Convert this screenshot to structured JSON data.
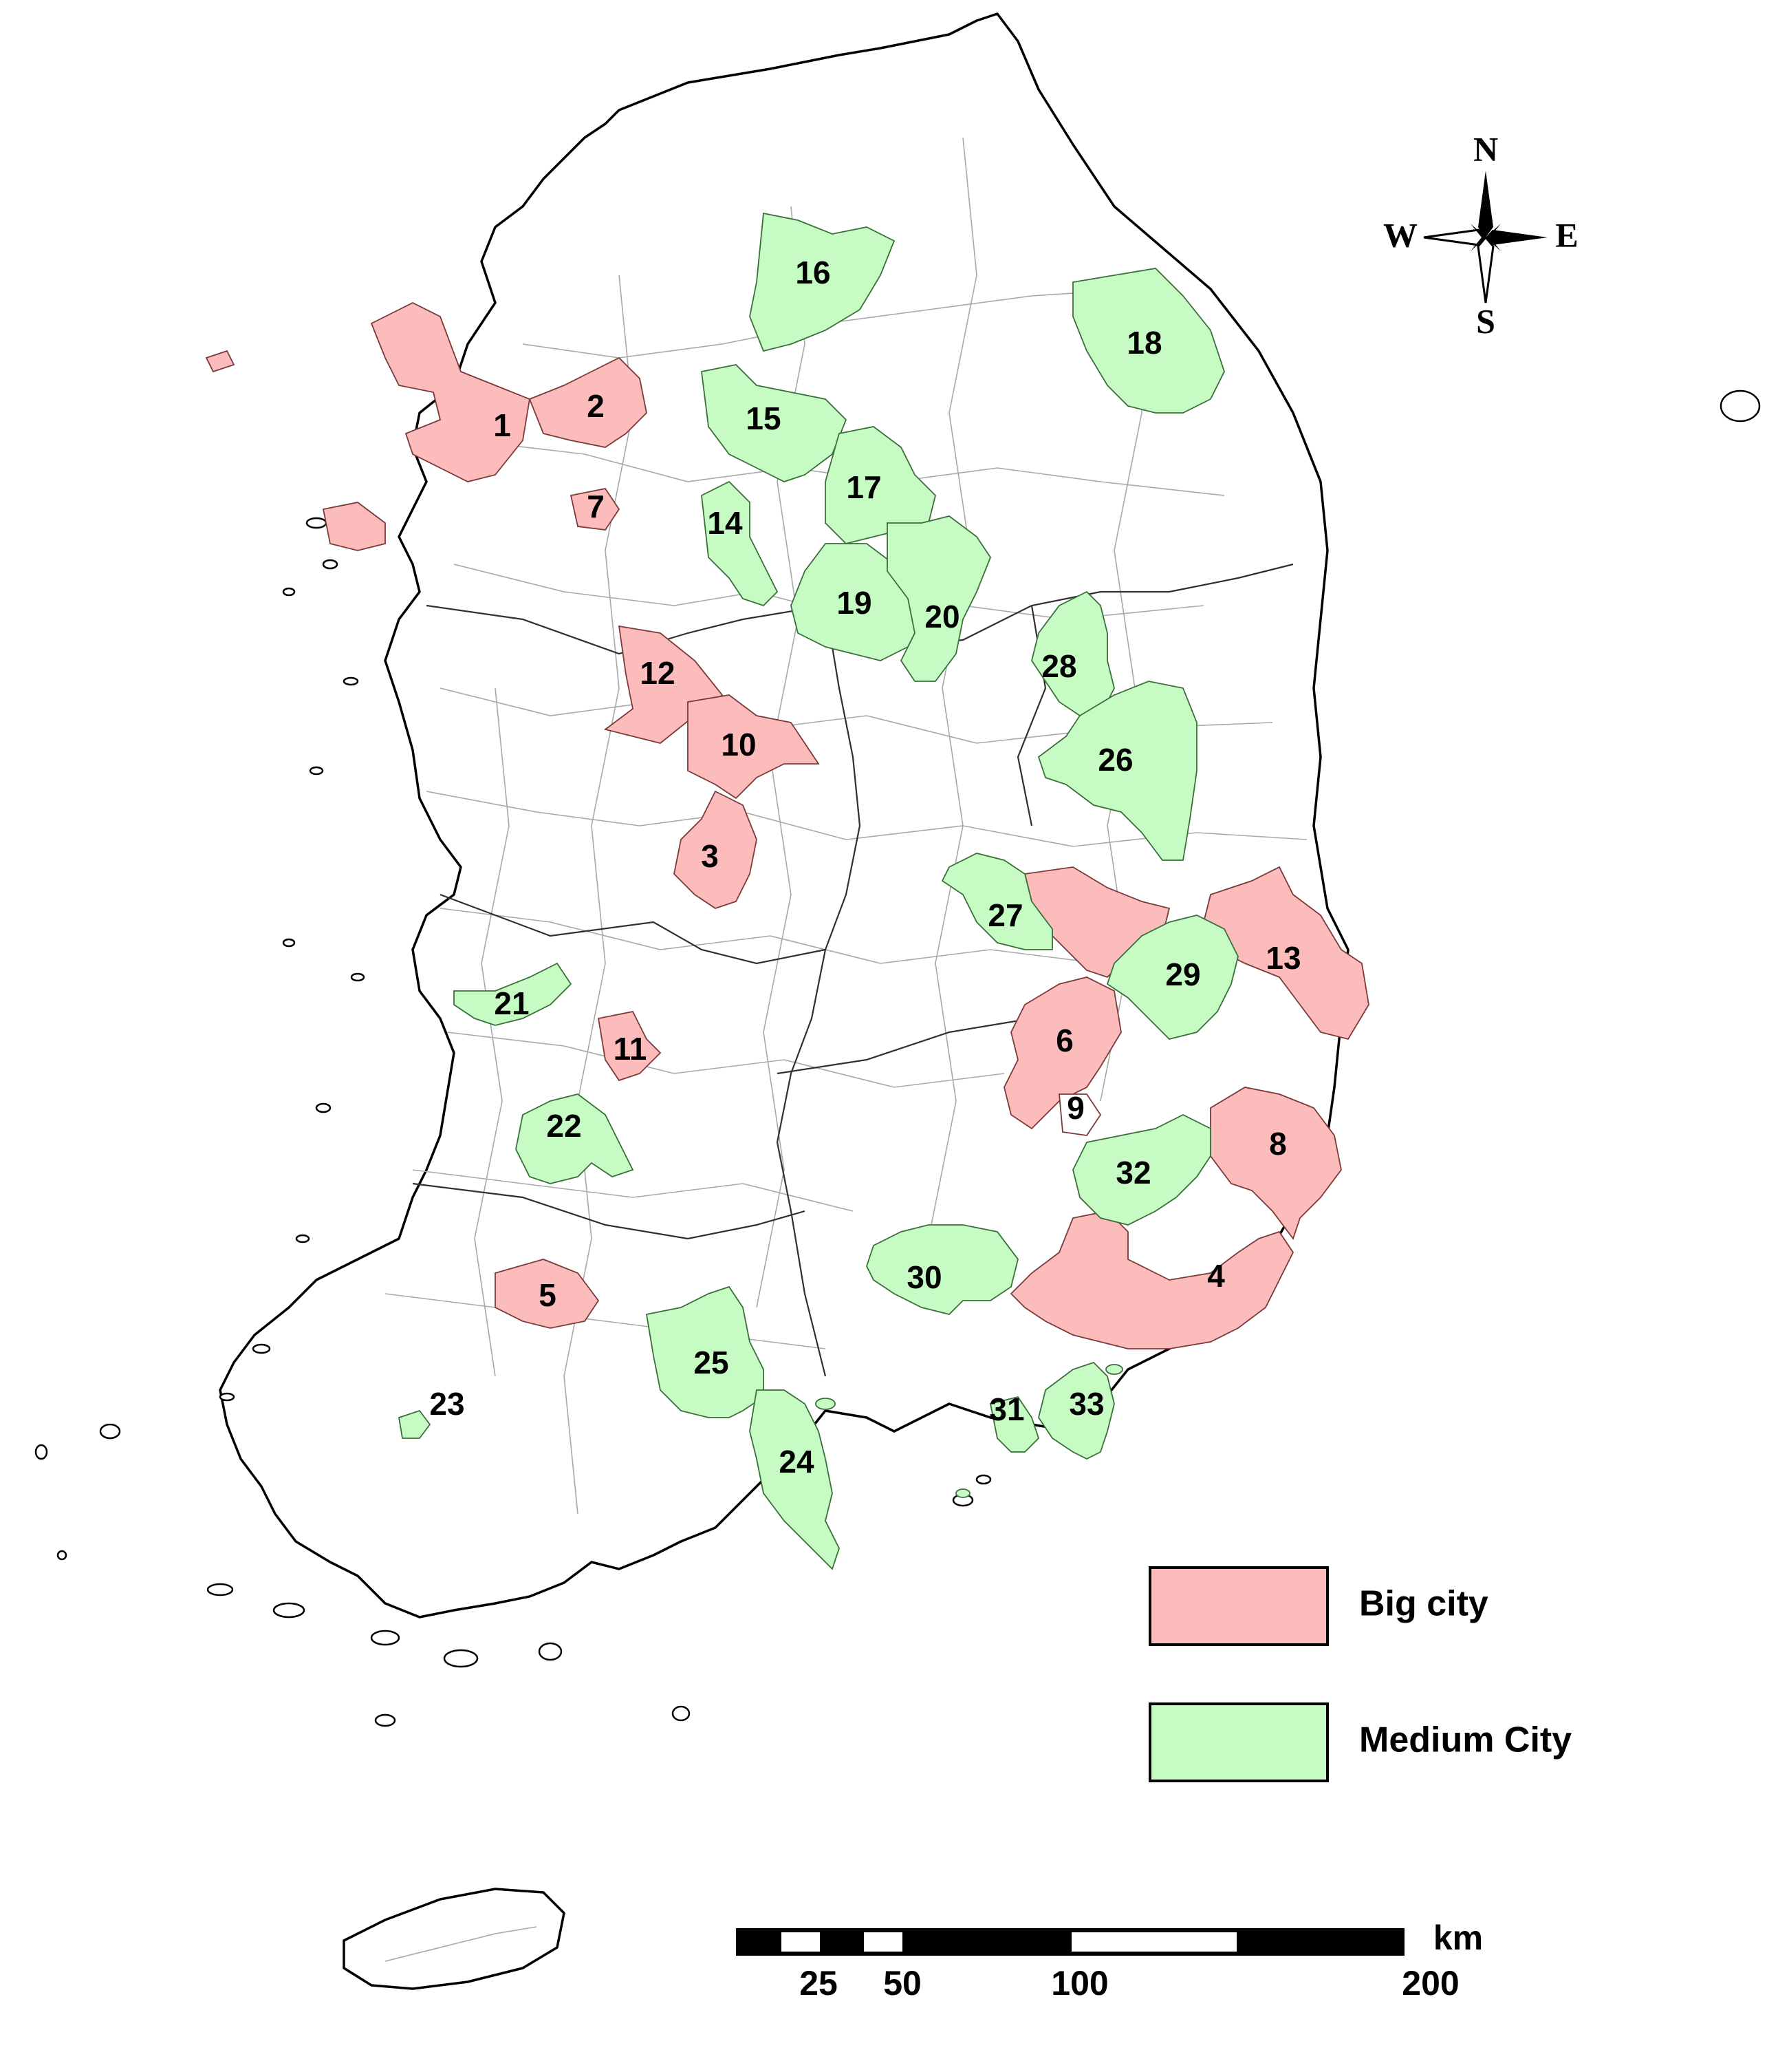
{
  "map": {
    "cities": [
      {
        "id": "1",
        "category": "big"
      },
      {
        "id": "2",
        "category": "big"
      },
      {
        "id": "3",
        "category": "big"
      },
      {
        "id": "4",
        "category": "big"
      },
      {
        "id": "5",
        "category": "big"
      },
      {
        "id": "6",
        "category": "big"
      },
      {
        "id": "7",
        "category": "big"
      },
      {
        "id": "8",
        "category": "big"
      },
      {
        "id": "9",
        "category": "big"
      },
      {
        "id": "10",
        "category": "big"
      },
      {
        "id": "11",
        "category": "big"
      },
      {
        "id": "12",
        "category": "big"
      },
      {
        "id": "13",
        "category": "big"
      },
      {
        "id": "14",
        "category": "medium"
      },
      {
        "id": "15",
        "category": "medium"
      },
      {
        "id": "16",
        "category": "medium"
      },
      {
        "id": "17",
        "category": "medium"
      },
      {
        "id": "18",
        "category": "medium"
      },
      {
        "id": "19",
        "category": "medium"
      },
      {
        "id": "20",
        "category": "medium"
      },
      {
        "id": "21",
        "category": "medium"
      },
      {
        "id": "22",
        "category": "medium"
      },
      {
        "id": "23",
        "category": "medium"
      },
      {
        "id": "24",
        "category": "medium"
      },
      {
        "id": "25",
        "category": "medium"
      },
      {
        "id": "26",
        "category": "medium"
      },
      {
        "id": "27",
        "category": "medium"
      },
      {
        "id": "28",
        "category": "medium"
      },
      {
        "id": "29",
        "category": "medium"
      },
      {
        "id": "30",
        "category": "medium"
      },
      {
        "id": "31",
        "category": "medium"
      },
      {
        "id": "32",
        "category": "medium"
      },
      {
        "id": "33",
        "category": "medium"
      }
    ]
  },
  "compass": {
    "n": "N",
    "s": "S",
    "e": "E",
    "w": "W"
  },
  "legend": {
    "items": [
      {
        "label": "Big city",
        "color": "#fcbcbc"
      },
      {
        "label": "Medium City",
        "color": "#c6fcc4"
      }
    ]
  },
  "scale_bar": {
    "unit": "km",
    "ticks": [
      "25",
      "50",
      "100",
      "200"
    ]
  }
}
